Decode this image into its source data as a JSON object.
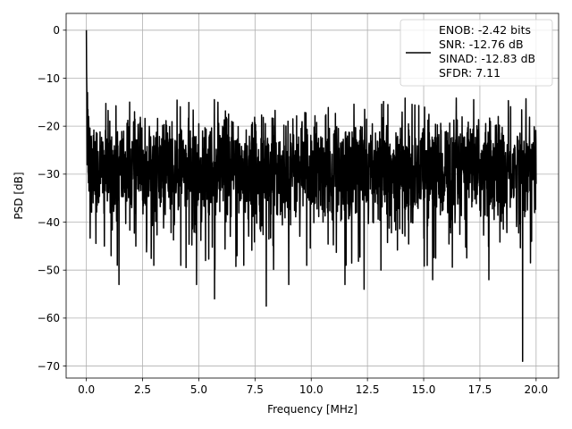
{
  "chart_data": {
    "type": "line",
    "title": "",
    "xlabel": "Frequency [MHz]",
    "ylabel": "PSD [dB]",
    "xlim": [
      -0.9,
      21.0
    ],
    "ylim": [
      -72.5,
      3.5
    ],
    "xticks": [
      0.0,
      2.5,
      5.0,
      7.5,
      10.0,
      12.5,
      15.0,
      17.5,
      20.0
    ],
    "xtick_labels": [
      "0.0",
      "2.5",
      "5.0",
      "7.5",
      "10.0",
      "12.5",
      "15.0",
      "17.5",
      "20.0"
    ],
    "yticks": [
      0,
      -10,
      -20,
      -30,
      -40,
      -50,
      -60,
      -70
    ],
    "ytick_labels": [
      "0",
      "−10",
      "−20",
      "−30",
      "−40",
      "−50",
      "−60",
      "−70"
    ],
    "grid": true,
    "legend_position": "top-right",
    "series": [
      {
        "name": "ENOB: -2.42 bits\nSNR: -12.76 dB\nSINAD: -12.83 dB\nSFDR: 7.11",
        "color": "#000000",
        "x_range": [
          0.0,
          20.0
        ],
        "envelope_note_points": [
          [
            0.0,
            0
          ],
          [
            0.02,
            -8
          ],
          [
            0.05,
            -13
          ],
          [
            0.1,
            -18
          ],
          [
            0.2,
            -35
          ],
          [
            0.3,
            -36
          ],
          [
            0.8,
            -45
          ],
          [
            1.1,
            -47
          ],
          [
            1.45,
            -53
          ],
          [
            2.2,
            -45
          ],
          [
            3.0,
            -49
          ],
          [
            4.2,
            -49
          ],
          [
            4.9,
            -53
          ],
          [
            5.3,
            -48
          ],
          [
            5.7,
            -56
          ],
          [
            6.7,
            -47
          ],
          [
            7.0,
            -49
          ],
          [
            8.0,
            -57.5
          ],
          [
            9.0,
            -53
          ],
          [
            9.8,
            -49
          ],
          [
            11.5,
            -53
          ],
          [
            12.35,
            -54
          ],
          [
            13.1,
            -50
          ],
          [
            15.4,
            -52
          ],
          [
            17.9,
            -52
          ],
          [
            19.4,
            -69
          ],
          [
            19.8,
            -44
          ]
        ],
        "typical_top": -20,
        "typical_bottom": -40,
        "peak_max": -14
      }
    ]
  },
  "legend": {
    "lines": [
      "ENOB: -2.42 bits",
      "SNR: -12.76 dB",
      "SINAD: -12.83 dB",
      "SFDR: 7.11"
    ]
  }
}
